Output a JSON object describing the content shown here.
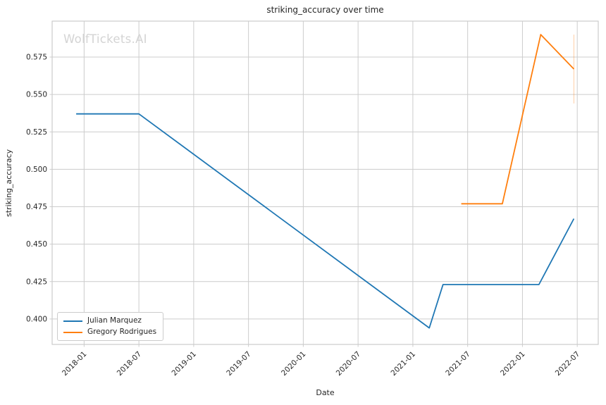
{
  "watermark": "WolfTickets.AI",
  "chart_data": {
    "type": "line",
    "title": "striking_accuracy over time",
    "xlabel": "Date",
    "ylabel": "striking_accuracy",
    "x_ticks": [
      "2018-01",
      "2018-07",
      "2019-01",
      "2019-07",
      "2020-01",
      "2020-07",
      "2021-01",
      "2021-07",
      "2022-01",
      "2022-07"
    ],
    "y_ticks": [
      "0.400",
      "0.425",
      "0.450",
      "0.475",
      "0.500",
      "0.525",
      "0.550",
      "0.575"
    ],
    "xlim": [
      "2017-09-16",
      "2022-09-10"
    ],
    "ylim": [
      0.383,
      0.599
    ],
    "grid": true,
    "legend_position": "lower left",
    "colors": {
      "grid": "#cccccc",
      "axis_text": "#262626",
      "watermark": "#d4d4d4",
      "background": "#ffffff",
      "julian_marquez": "#1f77b4",
      "gregory_rodrigues": "#ff7f0e"
    },
    "series": [
      {
        "name": "Julian Marquez",
        "color": "#1f77b4",
        "points": [
          [
            "2017-12-05",
            0.537
          ],
          [
            "2018-07-01",
            0.537
          ],
          [
            "2021-02-25",
            0.394
          ],
          [
            "2021-04-10",
            0.423
          ],
          [
            "2022-02-25",
            0.423
          ],
          [
            "2022-06-20",
            0.467
          ]
        ]
      },
      {
        "name": "Gregory Rodrigues",
        "color": "#ff7f0e",
        "points": [
          [
            "2021-06-10",
            0.477
          ],
          [
            "2021-10-25",
            0.477
          ],
          [
            "2022-03-01",
            0.59
          ],
          [
            "2022-06-20",
            0.567
          ]
        ],
        "error_bar": {
          "date": "2022-06-20",
          "low": 0.544,
          "high": 0.59
        }
      }
    ]
  }
}
